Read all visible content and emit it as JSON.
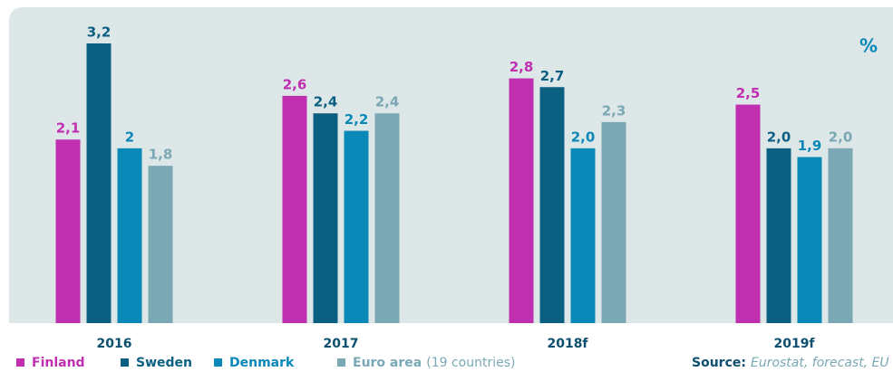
{
  "chart_data": {
    "type": "bar",
    "unit": "%",
    "categories": [
      "2016",
      "2017",
      "2018f",
      "2019f"
    ],
    "series": [
      {
        "name": "Finland",
        "color": "#c02fb0",
        "values": [
          2.1,
          2.6,
          2.8,
          2.5
        ],
        "value_labels": [
          "2,1",
          "2,6",
          "2,8",
          "2,5"
        ]
      },
      {
        "name": "Sweden",
        "color": "#0b6082",
        "values": [
          3.2,
          2.4,
          2.7,
          2.0
        ],
        "value_labels": [
          "3,2",
          "2,4",
          "2,7",
          "2,0"
        ]
      },
      {
        "name": "Denmark",
        "color": "#0a88b8",
        "values": [
          2,
          2.2,
          2.0,
          1.9
        ],
        "value_labels": [
          "2",
          "2,2",
          "2,0",
          "1,9"
        ]
      },
      {
        "name": "Euro area",
        "color": "#7ba8b5",
        "values": [
          1.8,
          2.4,
          2.3,
          2.0
        ],
        "value_labels": [
          "1,8",
          "2,4",
          "2,3",
          "2,0"
        ]
      }
    ],
    "legend_note": "(19 countries)",
    "source_label": "Source:",
    "source": "Eurostat, forecast, EU",
    "ylim": [
      0,
      3.5
    ],
    "legend": "bottom-left"
  }
}
